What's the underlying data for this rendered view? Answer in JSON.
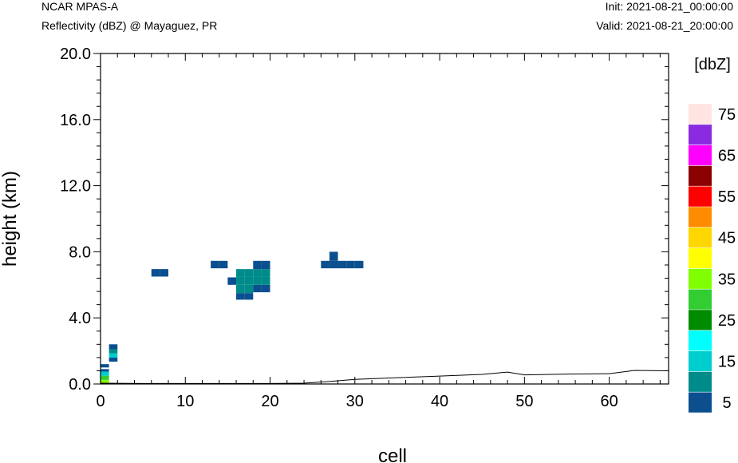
{
  "header": {
    "model": "NCAR MPAS-A",
    "field": "Reflectivity (dBZ) @ Mayaguez, PR",
    "init": "Init: 2021-08-21_00:00:00",
    "valid": "Valid: 2021-08-21_20:00:00"
  },
  "chart_data": {
    "type": "heatmap",
    "xlabel": "cell",
    "ylabel": "height (km)",
    "xlim": [
      0,
      67
    ],
    "ylim": [
      0,
      20
    ],
    "x_ticks": [
      0,
      10,
      20,
      30,
      40,
      50,
      60
    ],
    "y_ticks": [
      "0.0",
      "4.0",
      "8.0",
      "12.0",
      "16.0",
      "20.0"
    ],
    "cell_width": 1,
    "cell_height_km": 0.25,
    "colorbar": {
      "title": "[dbZ]",
      "placement": "right",
      "levels": [
        5,
        10,
        15,
        20,
        25,
        30,
        35,
        40,
        45,
        50,
        55,
        60,
        65,
        70,
        75
      ],
      "tick_labels": [
        "5",
        "15",
        "25",
        "35",
        "45",
        "55",
        "65",
        "75"
      ],
      "colors": [
        "#0b4f8f",
        "#008b8b",
        "#00cdcd",
        "#00ffff",
        "#008b00",
        "#32cd32",
        "#7fff00",
        "#ffff00",
        "#ffd700",
        "#ff8c00",
        "#ff0000",
        "#8b0000",
        "#ff00ff",
        "#8a2be2",
        "#ffe4e1"
      ]
    },
    "cells": [
      {
        "x": 0.5,
        "y0": 0.0,
        "y1": 0.25,
        "dbz": 35
      },
      {
        "x": 0.5,
        "y0": 0.25,
        "y1": 0.5,
        "dbz": 30
      },
      {
        "x": 0.5,
        "y0": 0.5,
        "y1": 0.75,
        "dbz": 15
      },
      {
        "x": 0.5,
        "y0": 0.75,
        "y1": 0.9,
        "dbz": 5
      },
      {
        "x": 0.5,
        "y0": 1.0,
        "y1": 1.2,
        "dbz": 5
      },
      {
        "x": 1.5,
        "y0": 1.35,
        "y1": 1.6,
        "dbz": 5
      },
      {
        "x": 1.5,
        "y0": 1.6,
        "y1": 1.85,
        "dbz": 15
      },
      {
        "x": 1.5,
        "y0": 1.85,
        "y1": 2.1,
        "dbz": 10
      },
      {
        "x": 1.5,
        "y0": 2.1,
        "y1": 2.4,
        "dbz": 5
      },
      {
        "x": 6.5,
        "y0": 6.5,
        "y1": 6.95,
        "dbz": 5
      },
      {
        "x": 7.5,
        "y0": 6.5,
        "y1": 6.95,
        "dbz": 5
      },
      {
        "x": 13.5,
        "y0": 7.0,
        "y1": 7.45,
        "dbz": 5
      },
      {
        "x": 14.5,
        "y0": 7.0,
        "y1": 7.45,
        "dbz": 5
      },
      {
        "x": 15.5,
        "y0": 6.0,
        "y1": 6.45,
        "dbz": 5
      },
      {
        "x": 16.5,
        "y0": 5.1,
        "y1": 5.5,
        "dbz": 5
      },
      {
        "x": 16.5,
        "y0": 5.5,
        "y1": 6.0,
        "dbz": 10
      },
      {
        "x": 16.5,
        "y0": 6.0,
        "y1": 6.5,
        "dbz": 10
      },
      {
        "x": 16.5,
        "y0": 6.5,
        "y1": 6.95,
        "dbz": 10
      },
      {
        "x": 17.5,
        "y0": 5.1,
        "y1": 5.5,
        "dbz": 5
      },
      {
        "x": 17.5,
        "y0": 5.5,
        "y1": 6.0,
        "dbz": 10
      },
      {
        "x": 17.5,
        "y0": 6.0,
        "y1": 6.5,
        "dbz": 10
      },
      {
        "x": 17.5,
        "y0": 6.5,
        "y1": 6.95,
        "dbz": 10
      },
      {
        "x": 18.5,
        "y0": 5.55,
        "y1": 6.0,
        "dbz": 5
      },
      {
        "x": 18.5,
        "y0": 6.0,
        "y1": 6.5,
        "dbz": 10
      },
      {
        "x": 18.5,
        "y0": 6.5,
        "y1": 6.95,
        "dbz": 10
      },
      {
        "x": 18.5,
        "y0": 6.95,
        "y1": 7.45,
        "dbz": 5
      },
      {
        "x": 19.5,
        "y0": 5.55,
        "y1": 6.0,
        "dbz": 5
      },
      {
        "x": 19.5,
        "y0": 6.0,
        "y1": 6.5,
        "dbz": 10
      },
      {
        "x": 19.5,
        "y0": 6.5,
        "y1": 6.95,
        "dbz": 10
      },
      {
        "x": 19.5,
        "y0": 6.95,
        "y1": 7.45,
        "dbz": 5
      },
      {
        "x": 26.5,
        "y0": 7.0,
        "y1": 7.45,
        "dbz": 5
      },
      {
        "x": 27.5,
        "y0": 7.0,
        "y1": 7.45,
        "dbz": 5
      },
      {
        "x": 27.5,
        "y0": 7.45,
        "y1": 8.0,
        "dbz": 5
      },
      {
        "x": 28.5,
        "y0": 7.0,
        "y1": 7.45,
        "dbz": 5
      },
      {
        "x": 29.5,
        "y0": 7.0,
        "y1": 7.45,
        "dbz": 5
      },
      {
        "x": 30.5,
        "y0": 7.0,
        "y1": 7.45,
        "dbz": 5
      }
    ],
    "terrain": {
      "x": [
        0,
        5,
        10,
        15,
        20,
        24,
        27,
        30,
        35,
        40,
        45,
        48,
        50,
        55,
        60,
        63,
        67
      ],
      "y": [
        0.05,
        0.03,
        0.03,
        0.03,
        0.03,
        0.05,
        0.15,
        0.28,
        0.38,
        0.48,
        0.58,
        0.72,
        0.55,
        0.6,
        0.62,
        0.82,
        0.8
      ]
    }
  }
}
